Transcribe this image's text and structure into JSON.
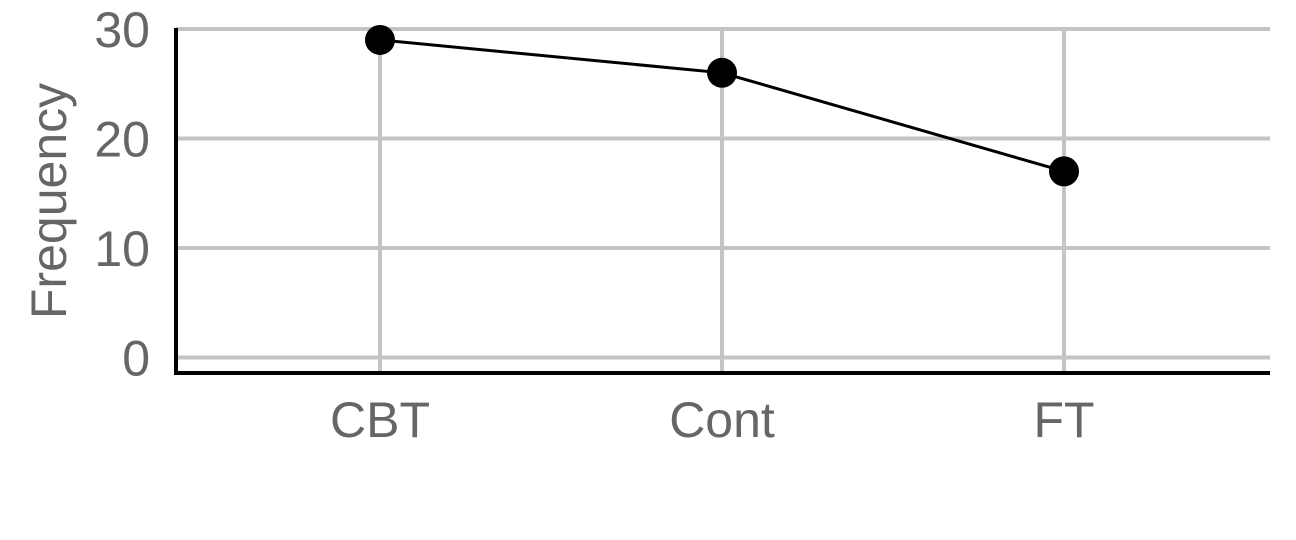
{
  "chart_data": {
    "type": "line",
    "categories": [
      "CBT",
      "Cont",
      "FT"
    ],
    "series": [
      {
        "values": [
          29,
          26,
          17
        ]
      }
    ],
    "title": "",
    "xlabel": "",
    "ylabel": "Frequency",
    "ylim": [
      0,
      30
    ],
    "yticks": [
      0,
      10,
      20,
      30
    ],
    "grid": true,
    "colors": {
      "line": "#000000",
      "points": "#000000",
      "grid": "#c4c4c4",
      "text": "#666666",
      "axis": "#000000"
    }
  }
}
